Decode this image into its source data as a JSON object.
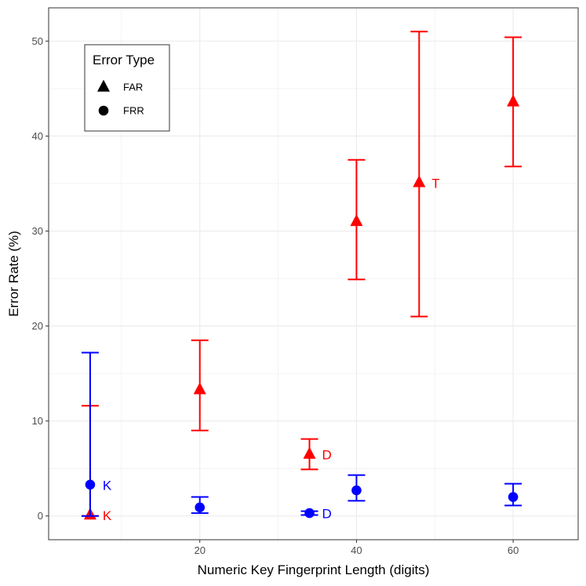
{
  "chart_data": {
    "type": "scatter",
    "title": "",
    "xlabel": "Numeric Key Fingerprint Length (digits)",
    "ylabel": "Error Rate (%)",
    "xlim": [
      0.7,
      68.3
    ],
    "ylim": [
      -2.5,
      53.5
    ],
    "x_ticks": [
      20,
      40,
      60
    ],
    "y_ticks": [
      0,
      10,
      20,
      30,
      40,
      50
    ],
    "x_tick_labels": [
      "20",
      "40",
      "60"
    ],
    "y_tick_labels": [
      "0",
      "10",
      "20",
      "30",
      "40",
      "50"
    ],
    "grid": true,
    "legend": {
      "title": "Error Type",
      "position": "top-left",
      "entries": [
        {
          "label": "FAR",
          "shape": "triangle"
        },
        {
          "label": "FRR",
          "shape": "circle"
        }
      ]
    },
    "series": [
      {
        "shape": "triangle",
        "color": "#ff0000",
        "points": [
          {
            "x": 6,
            "y": 0.1,
            "ymin": 0,
            "ymax": 11.6,
            "label": "K"
          },
          {
            "x": 20,
            "y": 13.3,
            "ymin": 9.0,
            "ymax": 18.5,
            "label": ""
          },
          {
            "x": 34,
            "y": 6.5,
            "ymin": 4.9,
            "ymax": 8.1,
            "label": "D"
          },
          {
            "x": 40,
            "y": 31.0,
            "ymin": 24.9,
            "ymax": 37.5,
            "label": ""
          },
          {
            "x": 48,
            "y": 35.1,
            "ymin": 21.0,
            "ymax": 51.0,
            "label": "T"
          },
          {
            "x": 60,
            "y": 43.6,
            "ymin": 36.8,
            "ymax": 50.4,
            "label": ""
          }
        ]
      },
      {
        "shape": "circle",
        "color": "#0000ff",
        "points": [
          {
            "x": 6,
            "y": 3.3,
            "ymin": 0,
            "ymax": 17.2,
            "label": "K"
          },
          {
            "x": 20,
            "y": 0.9,
            "ymin": 0.3,
            "ymax": 2.0,
            "label": ""
          },
          {
            "x": 34,
            "y": 0.3,
            "ymin": 0.1,
            "ymax": 0.5,
            "label": "D"
          },
          {
            "x": 40,
            "y": 2.7,
            "ymin": 1.6,
            "ymax": 4.3,
            "label": ""
          },
          {
            "x": 60,
            "y": 2.0,
            "ymin": 1.1,
            "ymax": 3.4,
            "label": ""
          }
        ]
      }
    ]
  }
}
